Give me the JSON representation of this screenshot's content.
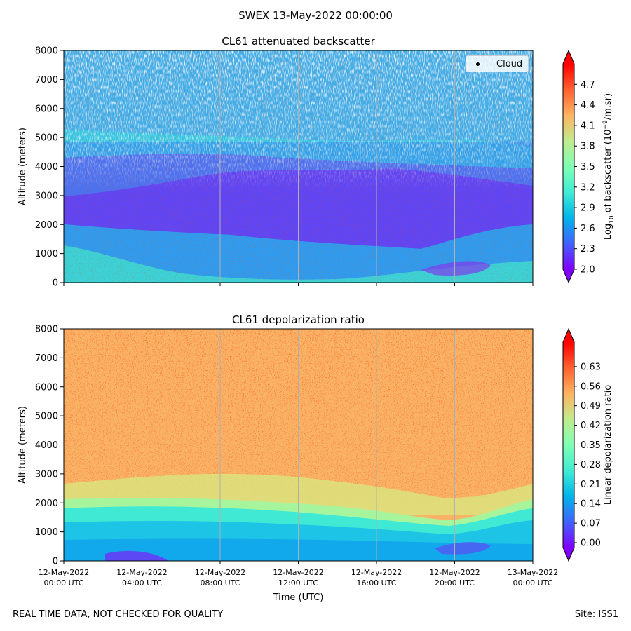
{
  "suptitle": "SWEX 13-May-2022 00:00:00",
  "footer": {
    "left": "REAL TIME DATA, NOT CHECKED FOR QUALITY",
    "right": "Site: ISS1"
  },
  "chart_data": [
    {
      "type": "heatmap",
      "title": "CL61 attenuated backscatter",
      "xlabel": "",
      "ylabel": "Altitude (meters)",
      "ylim": [
        0,
        8000
      ],
      "yticks": [
        "0",
        "1000",
        "2000",
        "3000",
        "4000",
        "5000",
        "6000",
        "7000",
        "8000"
      ],
      "xlim_hours": [
        0,
        24
      ],
      "legend": {
        "label": "Cloud",
        "placement": "top-right"
      },
      "colorbar": {
        "label_prefix": "Log",
        "label_sub": "10",
        "label_mid": " of backscatter (10",
        "label_sup": "−9",
        "label_suffix": "/m.sr)",
        "range": [
          2.0,
          5.0
        ],
        "ticks": [
          "2.0",
          "2.3",
          "2.6",
          "2.9",
          "3.2",
          "3.5",
          "3.8",
          "4.1",
          "4.4",
          "4.7"
        ],
        "colormap": "rainbow",
        "extend": "both"
      },
      "colors": {
        "low": "#8000ff",
        "high": "#ff0000"
      }
    },
    {
      "type": "heatmap",
      "title": "CL61 depolarization ratio",
      "xlabel": "Time (UTC)",
      "ylabel": "Altitude (meters)",
      "ylim": [
        0,
        8000
      ],
      "yticks": [
        "0",
        "1000",
        "2000",
        "3000",
        "4000",
        "5000",
        "6000",
        "7000",
        "8000"
      ],
      "xlim_hours": [
        0,
        24
      ],
      "xticks": [
        {
          "date": "12-May-2022",
          "time": "00:00 UTC"
        },
        {
          "date": "12-May-2022",
          "time": "04:00 UTC"
        },
        {
          "date": "12-May-2022",
          "time": "08:00 UTC"
        },
        {
          "date": "12-May-2022",
          "time": "12:00 UTC"
        },
        {
          "date": "12-May-2022",
          "time": "16:00 UTC"
        },
        {
          "date": "12-May-2022",
          "time": "20:00 UTC"
        },
        {
          "date": "13-May-2022",
          "time": "00:00 UTC"
        }
      ],
      "colorbar": {
        "label": "Linear depolarization ratio",
        "range": [
          -0.0175,
          0.7175
        ],
        "ticks": [
          "0.00",
          "0.07",
          "0.14",
          "0.21",
          "0.28",
          "0.35",
          "0.42",
          "0.49",
          "0.56",
          "0.63"
        ],
        "colormap": "rainbow",
        "extend": "both"
      }
    }
  ]
}
